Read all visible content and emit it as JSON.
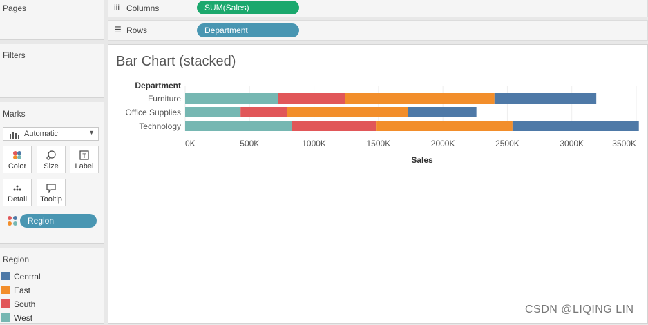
{
  "sidebar": {
    "pages_title": "Pages",
    "filters_title": "Filters",
    "marks_title": "Marks",
    "mark_type": "Automatic",
    "cards": [
      {
        "label": "Color",
        "icon": "color-icon"
      },
      {
        "label": "Size",
        "icon": "size-icon"
      },
      {
        "label": "Label",
        "icon": "label-icon"
      },
      {
        "label": "Detail",
        "icon": "detail-icon"
      },
      {
        "label": "Tooltip",
        "icon": "tooltip-icon"
      }
    ],
    "marks_pill": "Region"
  },
  "shelves": {
    "columns_label": "Columns",
    "columns_pill": "SUM(Sales)",
    "rows_label": "Rows",
    "rows_pill": "Department"
  },
  "legend": {
    "title": "Region",
    "items": [
      {
        "label": "Central",
        "color": "#4e79a7"
      },
      {
        "label": "East",
        "color": "#f28e2b"
      },
      {
        "label": "South",
        "color": "#e15759"
      },
      {
        "label": "West",
        "color": "#76b7b2"
      }
    ]
  },
  "chart_title": "Bar Chart (stacked)",
  "watermark": "CSDN @LIQING LIN",
  "chart_data": {
    "type": "bar",
    "orientation": "horizontal",
    "stacked": true,
    "title": "Bar Chart (stacked)",
    "row_header": "Department",
    "categories": [
      "Furniture",
      "Office Supplies",
      "Technology"
    ],
    "series": [
      {
        "name": "West",
        "color": "#76b7b2",
        "values": [
          720000,
          430000,
          830000
        ]
      },
      {
        "name": "South",
        "color": "#e15759",
        "values": [
          520000,
          360000,
          650000
        ]
      },
      {
        "name": "East",
        "color": "#f28e2b",
        "values": [
          1160000,
          940000,
          1060000
        ]
      },
      {
        "name": "Central",
        "color": "#4e79a7",
        "values": [
          790000,
          530000,
          980000
        ]
      }
    ],
    "xlabel": "Sales",
    "xlim": [
      0,
      3500000
    ],
    "xticks": [
      0,
      500000,
      1000000,
      1500000,
      2000000,
      2500000,
      3000000,
      3500000
    ],
    "xtick_labels": [
      "0K",
      "500K",
      "1000K",
      "1500K",
      "2000K",
      "2500K",
      "3000K",
      "3500K"
    ],
    "grid": "vertical"
  }
}
